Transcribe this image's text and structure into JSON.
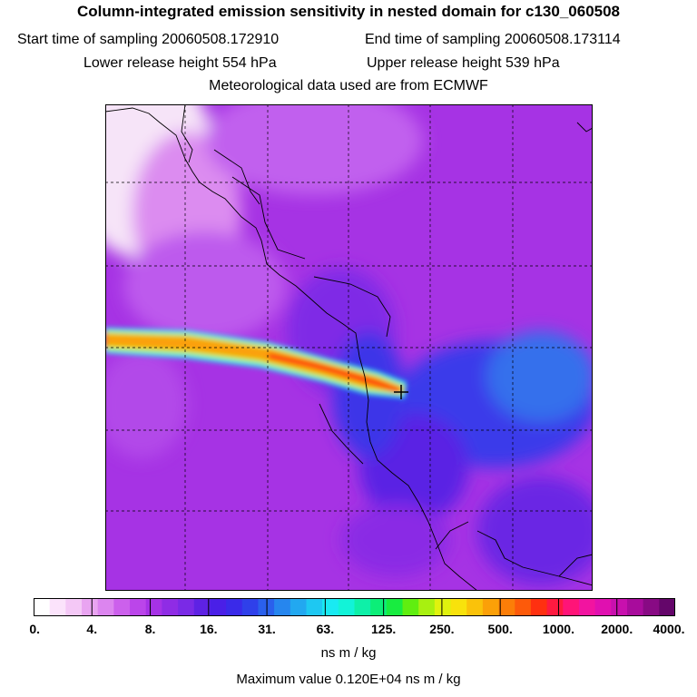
{
  "header": {
    "title": "Column-integrated emission sensitivity in nested domain for c130_060508",
    "start_label": "Start time of sampling 20060508.172910",
    "end_label": "End time of sampling 20060508.173114",
    "lower_label": "Lower release height  554 hPa",
    "upper_label": "Upper release height  539 hPa",
    "met_label": "Meteorological data used are from ECMWF"
  },
  "colorbar": {
    "ticks": [
      "0.",
      "4.",
      "8.",
      "16.",
      "31.",
      "63.",
      "125.",
      "250.",
      "500.",
      "1000.",
      "2000.",
      "4000."
    ],
    "colors": [
      "#ffffff",
      "#fbe3fb",
      "#f4c8f6",
      "#e9a4f1",
      "#dc85ef",
      "#cc60ec",
      "#bb45ea",
      "#a632e6",
      "#8f2ce5",
      "#7a2ae6",
      "#5e22e4",
      "#4a1fe7",
      "#3a2ae9",
      "#2f40ea",
      "#2a60ec",
      "#2686ee",
      "#22a8f0",
      "#1ec8f2",
      "#19eaf2",
      "#12f3d8",
      "#0ef0a8",
      "#0cee78",
      "#18ec40",
      "#60ee10",
      "#a8f010",
      "#e0f20e",
      "#f8e20c",
      "#fac20a",
      "#fba008",
      "#fc7e08",
      "#fd5a0a",
      "#ff3010",
      "#ff1a40",
      "#ff1478",
      "#f214a0",
      "#e010b0",
      "#c810ae",
      "#a80c9c",
      "#880a84",
      "#64066a"
    ],
    "units": "ns m / kg"
  },
  "footer": {
    "max_value": "Maximum value  0.120E+04 ns m / kg"
  },
  "map": {
    "background_color": "#a530e0",
    "receptor_marker": "cross-icon"
  }
}
